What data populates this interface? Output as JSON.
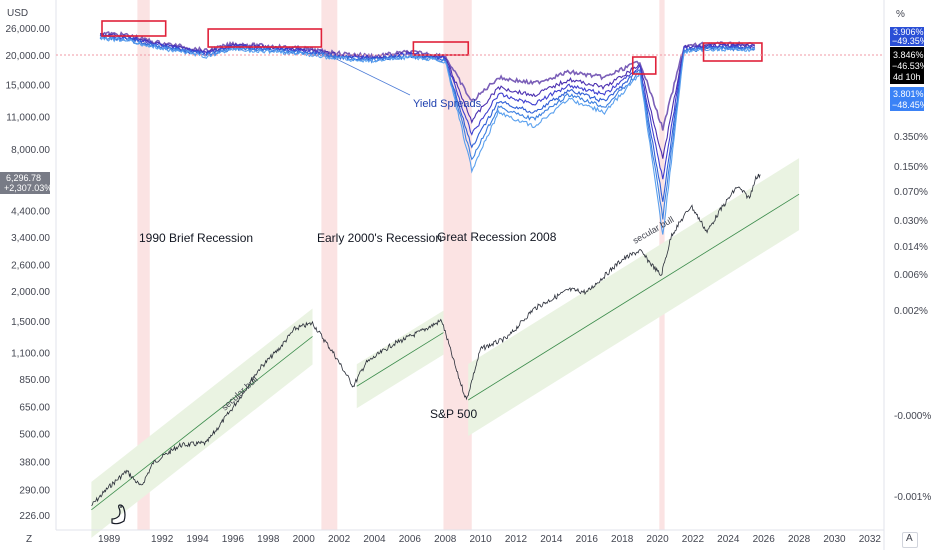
{
  "chart_data": [
    {
      "type": "line",
      "title": "",
      "ylabel": "",
      "currency_label": "USD",
      "scale": "log",
      "left_axis_ticks": [
        "26,000.00",
        "20,000.00",
        "15,000.00",
        "11,000.00",
        "8,000.00",
        "4,400.00",
        "3,400.00",
        "2,600.00",
        "2,000.00",
        "1,500.00",
        "1,100.00",
        "850.00",
        "650.00",
        "500.00",
        "380.00",
        "290.00",
        "226.00"
      ],
      "x_ticks": [
        "1989",
        "1992",
        "1994",
        "1996",
        "1998",
        "2000",
        "2002",
        "2004",
        "2006",
        "2008",
        "2010",
        "2012",
        "2014",
        "2016",
        "2018",
        "2020",
        "2022",
        "2024",
        "2026",
        "2028",
        "2030",
        "2032"
      ],
      "xlim": [
        1986.0,
        2032.8
      ],
      "series": [
        {
          "name": "S&P 500",
          "color": "#2a2e39",
          "points": [
            [
              1988.0,
              250
            ],
            [
              1989.0,
              300
            ],
            [
              1990.0,
              350
            ],
            [
              1990.8,
              300
            ],
            [
              1991.5,
              380
            ],
            [
              1993.0,
              450
            ],
            [
              1994.5,
              460
            ],
            [
              1996.0,
              650
            ],
            [
              1997.5,
              950
            ],
            [
              1998.6,
              1150
            ],
            [
              1999.5,
              1400
            ],
            [
              2000.5,
              1480
            ],
            [
              2001.7,
              1100
            ],
            [
              2002.8,
              800
            ],
            [
              2003.5,
              1000
            ],
            [
              2005.0,
              1200
            ],
            [
              2006.5,
              1350
            ],
            [
              2007.8,
              1520
            ],
            [
              2008.7,
              900
            ],
            [
              2009.2,
              700
            ],
            [
              2010.0,
              1150
            ],
            [
              2011.5,
              1280
            ],
            [
              2013.0,
              1700
            ],
            [
              2015.0,
              2050
            ],
            [
              2016.0,
              2000
            ],
            [
              2018.0,
              2750
            ],
            [
              2019.0,
              3000
            ],
            [
              2020.2,
              2350
            ],
            [
              2020.8,
              3500
            ],
            [
              2021.9,
              4650
            ],
            [
              2022.8,
              3600
            ],
            [
              2023.5,
              4400
            ],
            [
              2024.5,
              5600
            ],
            [
              2025.2,
              5000
            ],
            [
              2025.5,
              6000
            ],
            [
              2025.8,
              6296.78
            ]
          ]
        },
        {
          "name": "Yield Spreads",
          "color": "#7b5fb8",
          "points": [
            [
              1988.5,
              25000
            ],
            [
              1990.0,
              24500
            ],
            [
              1991.5,
              23000
            ],
            [
              1993.0,
              22000
            ],
            [
              1994.5,
              21000
            ],
            [
              1996.0,
              22500
            ],
            [
              1998.0,
              22000
            ],
            [
              2000.0,
              21500
            ],
            [
              2002.0,
              20500
            ],
            [
              2004.0,
              20000
            ],
            [
              2006.0,
              20800
            ],
            [
              2008.0,
              20000
            ],
            [
              2009.5,
              16000
            ],
            [
              2011.0,
              18000
            ],
            [
              2013.0,
              17500
            ],
            [
              2015.0,
              18500
            ],
            [
              2017.0,
              18000
            ],
            [
              2019.0,
              19500
            ],
            [
              2020.3,
              14000
            ],
            [
              2021.5,
              22000
            ],
            [
              2023.0,
              22500
            ],
            [
              2025.5,
              22300
            ]
          ]
        }
      ],
      "recessions": [
        [
          1990.6,
          1991.3
        ],
        [
          2001.0,
          2001.9
        ],
        [
          2007.9,
          2009.5
        ],
        [
          2020.1,
          2020.4
        ]
      ],
      "trend_channel": {
        "label": "secular bull"
      },
      "annotations": [
        "1990 Brief Recession",
        "Early 2000's Recession",
        "Great Recession 2008",
        "S&P 500",
        "Yield Spreads",
        "secular bull",
        "secular bull"
      ],
      "legend": "none",
      "grid": false
    }
  ],
  "right_axis": {
    "unit_label": "%",
    "ticks": [
      "0.350%",
      "0.150%",
      "0.070%",
      "0.030%",
      "0.014%",
      "0.006%",
      "0.002%",
      "-0.000%",
      "-0.001%"
    ]
  },
  "price_tags": {
    "left": {
      "line1": "6,296.78",
      "line2": "+2,307.03%",
      "color": "#787b86"
    },
    "right": [
      {
        "line1": "3.906%",
        "line2": "−49.35%",
        "color": "#2a4fd6"
      },
      {
        "line1": "3.846%",
        "line2": "−46.53%",
        "line3": "4d 10h",
        "color": "#000000"
      },
      {
        "line1": "3.801%",
        "line2": "−48.45%",
        "color": "#3b82f6"
      }
    ]
  },
  "corners": {
    "bottom_left": "Z",
    "bottom_right": "A"
  },
  "colors": {
    "recession_band": "#fbe3e3",
    "highlight_box": "#e0223a",
    "channel_fill": "#eaf3e2",
    "trend_line": "#3c8c4c"
  }
}
